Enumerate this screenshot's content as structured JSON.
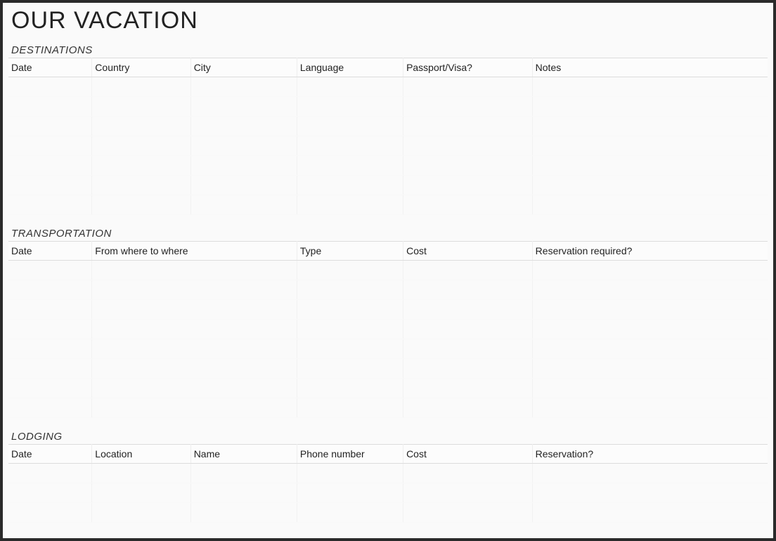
{
  "title": "OUR VACATION",
  "sections": {
    "destinations": {
      "heading": "DESTINATIONS",
      "columns": [
        "Date",
        "Country",
        "City",
        "Language",
        "Passport/Visa?",
        "Notes"
      ],
      "col_widths": [
        "11%",
        "13%",
        "14%",
        "14%",
        "17%",
        "31%"
      ],
      "row_count": 7
    },
    "transportation": {
      "heading": "TRANSPORTATION",
      "columns": [
        "Date",
        "From where to where",
        "Type",
        "Cost",
        "Reservation required?"
      ],
      "col_widths": [
        "11%",
        "27%",
        "14%",
        "17%",
        "31%"
      ],
      "row_count": 8
    },
    "lodging": {
      "heading": "LODGING",
      "columns": [
        "Date",
        "Location",
        "Name",
        "Phone number",
        "Cost",
        "Reservation?"
      ],
      "col_widths": [
        "11%",
        "13%",
        "14%",
        "14%",
        "17%",
        "31%"
      ],
      "row_count": 3
    }
  },
  "styles": {
    "page_bg": "#fafafa",
    "border_color": "#2a2a2a",
    "title_fontsize": 34,
    "section_fontsize": 15,
    "header_fontsize": 14,
    "grid_line_color": "#f2f2f2",
    "header_border_color": "#ddd"
  }
}
